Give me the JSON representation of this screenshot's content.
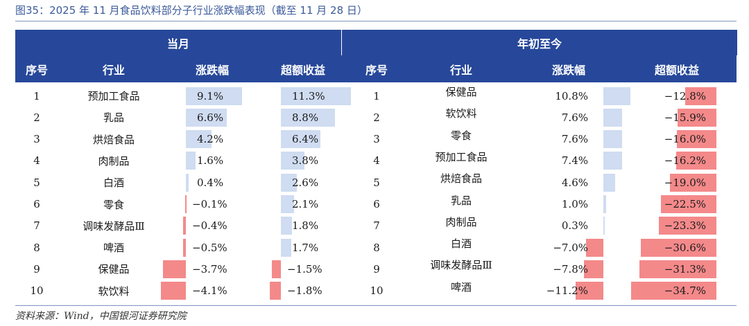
{
  "caption": "图35：2025 年 11 月食品饮料部分子行业涨跌幅表现（截至 11 月 28 日）",
  "source": "资料来源：Wind，中国银河证券研究院",
  "groups": {
    "left": "当月",
    "right": "年初至今"
  },
  "headers": {
    "no": "序号",
    "industry": "行业",
    "change": "涨跌幅",
    "excess": "超额收益"
  },
  "colors": {
    "header_bg": "#27489a",
    "positive_bar": "#cfdcf1",
    "negative_bar": "#f4898a"
  },
  "chart_data": {
    "type": "table",
    "left": {
      "title": "当月",
      "rows": [
        {
          "no": "1",
          "industry": "预加工食品",
          "change": 9.1,
          "change_label": "9.1%",
          "excess": 11.3,
          "excess_label": "11.3%"
        },
        {
          "no": "2",
          "industry": "乳品",
          "change": 6.6,
          "change_label": "6.6%",
          "excess": 8.8,
          "excess_label": "8.8%"
        },
        {
          "no": "3",
          "industry": "烘焙食品",
          "change": 4.2,
          "change_label": "4.2%",
          "excess": 6.4,
          "excess_label": "6.4%"
        },
        {
          "no": "4",
          "industry": "肉制品",
          "change": 1.6,
          "change_label": "1.6%",
          "excess": 3.8,
          "excess_label": "3.8%"
        },
        {
          "no": "5",
          "industry": "白酒",
          "change": 0.4,
          "change_label": "0.4%",
          "excess": 2.6,
          "excess_label": "2.6%"
        },
        {
          "no": "6",
          "industry": "零食",
          "change": -0.1,
          "change_label": "−0.1%",
          "excess": 2.1,
          "excess_label": "2.1%"
        },
        {
          "no": "7",
          "industry": "调味发酵品Ⅲ",
          "change": -0.4,
          "change_label": "−0.4%",
          "excess": 1.8,
          "excess_label": "1.8%"
        },
        {
          "no": "8",
          "industry": "啤酒",
          "change": -0.5,
          "change_label": "−0.5%",
          "excess": 1.7,
          "excess_label": "1.7%"
        },
        {
          "no": "9",
          "industry": "保健品",
          "change": -3.7,
          "change_label": "−3.7%",
          "excess": -1.5,
          "excess_label": "−1.5%"
        },
        {
          "no": "10",
          "industry": "软饮料",
          "change": -4.1,
          "change_label": "−4.1%",
          "excess": -1.8,
          "excess_label": "−1.8%"
        }
      ]
    },
    "right": {
      "title": "年初至今",
      "rows": [
        {
          "no": "1",
          "industry": "保健品",
          "change": 10.8,
          "change_label": "10.8%",
          "excess": -12.8,
          "excess_label": "−12.8%"
        },
        {
          "no": "2",
          "industry": "软饮料",
          "change": 7.6,
          "change_label": "7.6%",
          "excess": -15.9,
          "excess_label": "−15.9%"
        },
        {
          "no": "3",
          "industry": "零食",
          "change": 7.6,
          "change_label": "7.6%",
          "excess": -16.0,
          "excess_label": "−16.0%"
        },
        {
          "no": "4",
          "industry": "预加工食品",
          "change": 7.4,
          "change_label": "7.4%",
          "excess": -16.2,
          "excess_label": "−16.2%"
        },
        {
          "no": "5",
          "industry": "烘焙食品",
          "change": 4.6,
          "change_label": "4.6%",
          "excess": -19.0,
          "excess_label": "−19.0%"
        },
        {
          "no": "6",
          "industry": "乳品",
          "change": 1.0,
          "change_label": "1.0%",
          "excess": -22.5,
          "excess_label": "−22.5%"
        },
        {
          "no": "7",
          "industry": "肉制品",
          "change": 0.3,
          "change_label": "0.3%",
          "excess": -23.3,
          "excess_label": "−23.3%"
        },
        {
          "no": "8",
          "industry": "白酒",
          "change": -7.0,
          "change_label": "−7.0%",
          "excess": -30.6,
          "excess_label": "−30.6%"
        },
        {
          "no": "9",
          "industry": "调味发酵品Ⅲ",
          "change": -7.8,
          "change_label": "−7.8%",
          "excess": -31.3,
          "excess_label": "−31.3%"
        },
        {
          "no": "10",
          "industry": "啤酒",
          "change": -11.2,
          "change_label": "−11.2%",
          "excess": -34.7,
          "excess_label": "−34.7%"
        }
      ]
    }
  }
}
